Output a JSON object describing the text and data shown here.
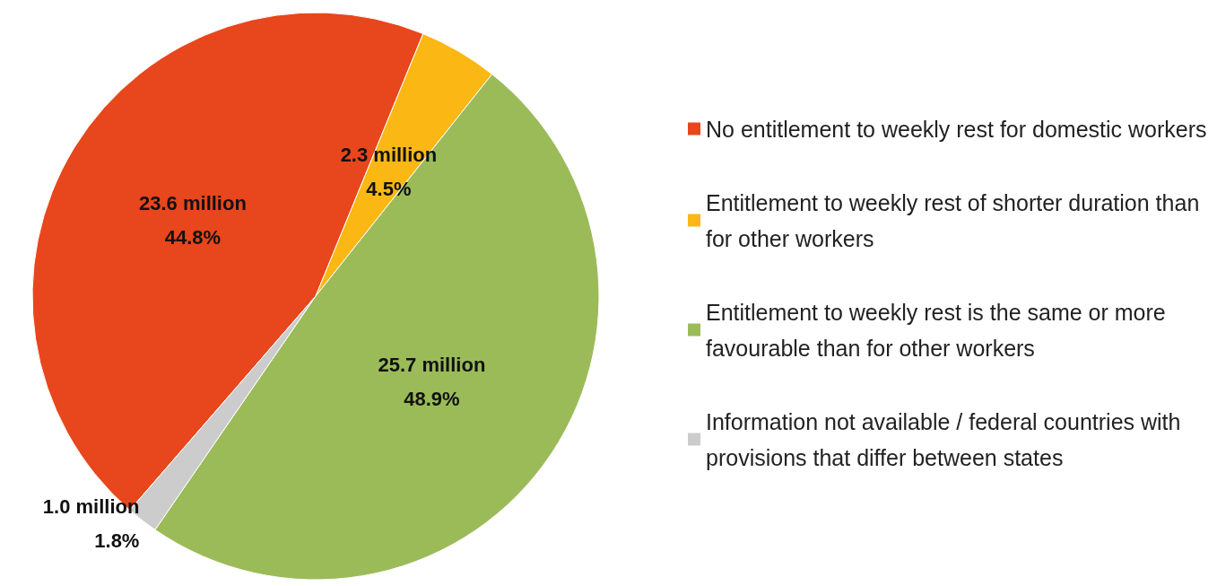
{
  "chart_data": {
    "type": "pie",
    "categories": [
      "No entitlement to weekly rest for domestic workers",
      "Entitlement to weekly rest of shorter duration than for other workers",
      "Entitlement to weekly rest is the same or more favourable than for other workers",
      "Information not available / federal countries with provisions that differ between states"
    ],
    "values": [
      44.8,
      4.5,
      48.9,
      1.8
    ],
    "colors": [
      "#e8461c",
      "#fbb714",
      "#9bbb59",
      "#cccccc"
    ],
    "value_labels": [
      "23.6 million\n44.8%",
      "2.3 million\n4.5%",
      "25.7 million\n48.9%",
      "1.0 million\n1.8%"
    ],
    "legend": "right"
  }
}
